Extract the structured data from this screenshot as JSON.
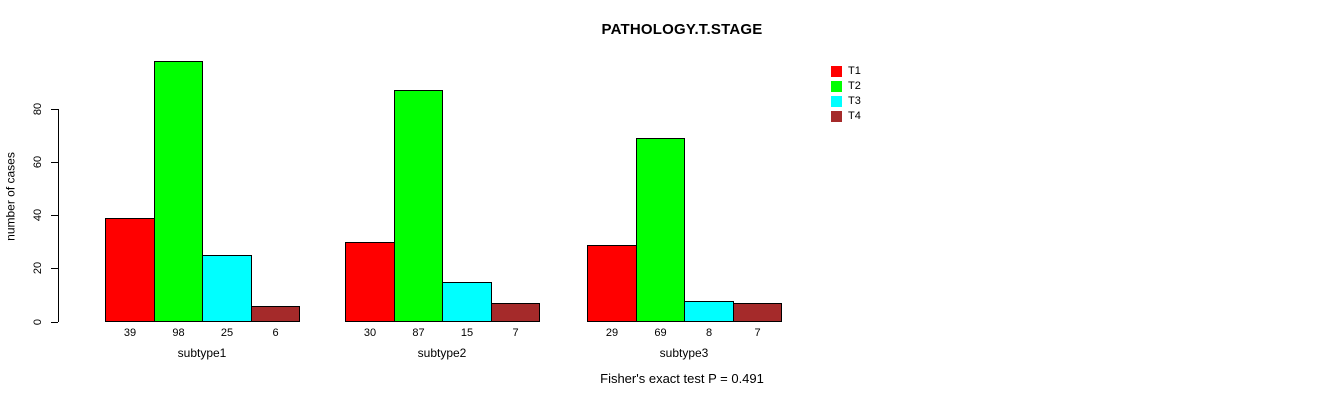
{
  "chart_data": {
    "type": "bar",
    "title": "PATHOLOGY.T.STAGE",
    "ylabel": "number of cases",
    "xlabel": "",
    "categories": [
      "subtype1",
      "subtype2",
      "subtype3"
    ],
    "series": [
      {
        "name": "T1",
        "color": "#ff0000",
        "values": [
          39,
          30,
          29
        ]
      },
      {
        "name": "T2",
        "color": "#00ff00",
        "values": [
          98,
          87,
          69
        ]
      },
      {
        "name": "T3",
        "color": "#00ffff",
        "values": [
          25,
          15,
          8
        ]
      },
      {
        "name": "T4",
        "color": "#a52a2a",
        "values": [
          6,
          7,
          7
        ]
      }
    ],
    "yticks": [
      0,
      20,
      40,
      60,
      80
    ],
    "ylim": [
      0,
      98
    ],
    "grid": false,
    "legend": {
      "position": "top-right",
      "entries": [
        "T1",
        "T2",
        "T3",
        "T4"
      ]
    },
    "annotation": "Fisher's exact test P = 0.491",
    "bar_border_color": "#000000",
    "axis_color": "#000000",
    "background": "#ffffff",
    "bar_value_labels_shown": true
  }
}
